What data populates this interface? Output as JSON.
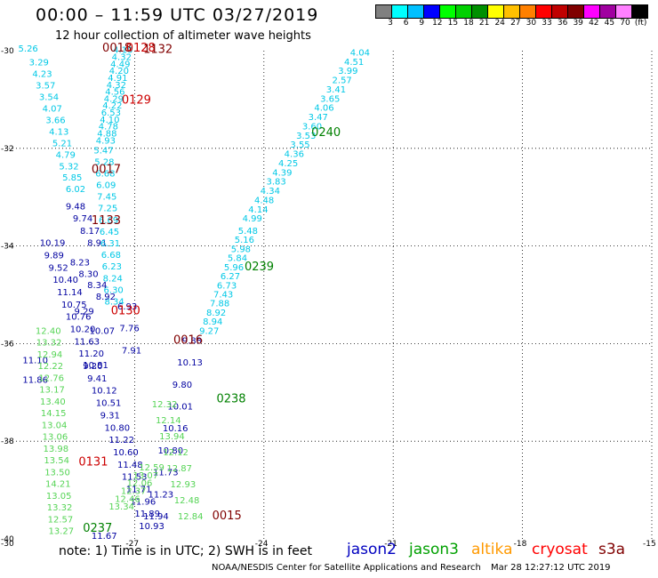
{
  "header": {
    "title": "00:00 – 11:59 UTC 03/27/2019",
    "subtitle": "12 hour collection of altimeter wave heights"
  },
  "colorbar": {
    "unit_label": "(ft)",
    "labels": [
      "3",
      "6",
      "9",
      "12",
      "15",
      "18",
      "21",
      "24",
      "27",
      "30",
      "33",
      "36",
      "39",
      "42",
      "45",
      "70"
    ],
    "colors": [
      "#808080",
      "#00ffff",
      "#00c0ff",
      "#0000ff",
      "#00ff00",
      "#00d000",
      "#009000",
      "#ffff00",
      "#ffc000",
      "#ff8000",
      "#ff0000",
      "#c00000",
      "#800000",
      "#ff00ff",
      "#a000a0",
      "#ff80ff",
      "#000000"
    ]
  },
  "map": {
    "lat_labels": [
      "-30",
      "-32",
      "-34",
      "-36",
      "-38",
      "-40"
    ],
    "lon_labels": [
      "-30",
      "-27",
      "-24",
      "-21",
      "-18",
      "-15"
    ],
    "lat_values": [
      -30,
      -32,
      -34,
      -36,
      -38,
      -40
    ],
    "lon_values": [
      -30,
      -27,
      -24,
      -21,
      -18,
      -15
    ],
    "track_colors": {
      "jason2": "#0000a0",
      "jason3": "#008000",
      "cryosat": "#cc0000",
      "s3a": "#800000",
      "cyan": "#00c8e6",
      "lightgreen": "#55d455"
    },
    "time_labels": [
      {
        "text": "0018",
        "lon": -27.75,
        "lat": -30.02,
        "color": "s3a"
      },
      {
        "text": "0128",
        "lon": -27.2,
        "lat": -30.02,
        "color": "cryosat"
      },
      {
        "text": "1132",
        "lon": -26.8,
        "lat": -30.05,
        "color": "s3a"
      },
      {
        "text": "0129",
        "lon": -27.3,
        "lat": -31.08,
        "color": "cryosat"
      },
      {
        "text": "0017",
        "lon": -28.0,
        "lat": -32.5,
        "color": "s3a"
      },
      {
        "text": "1133",
        "lon": -28.0,
        "lat": -33.55,
        "color": "s3a"
      },
      {
        "text": "0130",
        "lon": -27.55,
        "lat": -35.4,
        "color": "cryosat"
      },
      {
        "text": "0016",
        "lon": -26.1,
        "lat": -36.0,
        "color": "s3a"
      },
      {
        "text": "0131",
        "lon": -28.3,
        "lat": -38.5,
        "color": "cryosat"
      },
      {
        "text": "0015",
        "lon": -25.2,
        "lat": -39.6,
        "color": "s3a"
      },
      {
        "text": "0237",
        "lon": -28.2,
        "lat": -39.85,
        "color": "jason3"
      },
      {
        "text": "0238",
        "lon": -25.1,
        "lat": -37.2,
        "color": "jason3"
      },
      {
        "text": "0239",
        "lon": -24.45,
        "lat": -34.5,
        "color": "jason3"
      },
      {
        "text": "0240",
        "lon": -22.9,
        "lat": -31.75,
        "color": "jason3"
      }
    ],
    "tracks": [
      {
        "color": "jason2",
        "start": [
          -28.6,
          -33.25
        ],
        "end": [
          -28.1,
          -34.0
        ],
        "values": [
          "9.48",
          "9.74",
          "8.17",
          "8.91"
        ]
      },
      {
        "color": "jason2",
        "start": [
          -29.2,
          -34.0
        ],
        "end": [
          -26.9,
          -39.8
        ],
        "values": [
          "10.19",
          "9.89",
          "9.52",
          "10.40",
          "11.14",
          "10.75",
          "10.76",
          "10.20",
          "11.63",
          "11.20",
          "9.20",
          "9.41",
          "10.12",
          "10.51",
          "9.31",
          "10.80",
          "11.22",
          "10.60",
          "11.48",
          "11.53",
          "11.71",
          "11.96",
          "11.89",
          "10.93"
        ]
      },
      {
        "color": "jason2",
        "start": [
          -25.9,
          -36.0
        ],
        "end": [
          -26.8,
          -39.6
        ],
        "values": [
          "9.88",
          "10.13",
          "9.80",
          "10.01",
          "10.16",
          "10.80",
          "11.73",
          "11.23",
          "11.94"
        ]
      },
      {
        "color": "jason2",
        "start": [
          -29.6,
          -36.4
        ],
        "end": [
          -29.6,
          -36.8
        ],
        "values": [
          "11.10",
          "11.86"
        ]
      },
      {
        "color": "jason2",
        "start": [
          -28.2,
          -36.5
        ],
        "end": [
          -28.0,
          -40.0
        ],
        "values": [
          "10.81",
          "11.67"
        ]
      },
      {
        "color": "jason2",
        "start": [
          -28.4,
          -35.4
        ],
        "end": [
          -28.05,
          -35.8
        ],
        "values": [
          "9.29",
          "10.07"
        ]
      },
      {
        "color": "cyan",
        "start": [
          -29.7,
          -30.02
        ],
        "end": [
          -29.7,
          -30.15
        ],
        "values": [
          "5.26"
        ]
      },
      {
        "color": "cyan",
        "start": [
          -29.45,
          -30.3
        ],
        "end": [
          -28.6,
          -32.9
        ],
        "values": [
          "3.29",
          "4.23",
          "3.57",
          "3.54",
          "4.07",
          "3.66",
          "4.13",
          "5.21",
          "4.79",
          "5.32",
          "5.85",
          "6.02"
        ]
      },
      {
        "color": "cyan",
        "start": [
          -27.5,
          -30.05
        ],
        "end": [
          -27.9,
          -31.9
        ],
        "values": [
          "4.10",
          "4.32",
          "4.49",
          "4.20",
          "4.91",
          "4.32",
          "4.56",
          "4.29",
          "4.22",
          "6.53",
          "4.10",
          "4.78",
          "4.88",
          "4.93"
        ]
      },
      {
        "color": "cyan",
        "start": [
          -27.95,
          -32.1
        ],
        "end": [
          -27.7,
          -35.2
        ],
        "values": [
          "5.47",
          "5.28",
          "6.68",
          "6.09",
          "7.45",
          "7.25",
          "6.69",
          "6.45",
          "6.31",
          "6.68",
          "6.23",
          "8.24",
          "6.30",
          "8.34"
        ]
      },
      {
        "color": "jason2",
        "start": [
          -28.5,
          -34.4
        ],
        "end": [
          -27.9,
          -35.1
        ],
        "values": [
          "8.23",
          "8.30",
          "8.34",
          "8.92"
        ]
      },
      {
        "color": "cyan",
        "start": [
          -22.0,
          -30.1
        ],
        "end": [
          -24.5,
          -33.5
        ],
        "values": [
          "4.04",
          "4.51",
          "3.99",
          "2.57",
          "3.41",
          "3.65",
          "4.06",
          "3.47",
          "3.60",
          "3.53",
          "3.55",
          "4.36",
          "4.25",
          "4.39",
          "3.83",
          "4.34",
          "4.48",
          "4.14",
          "4.99"
        ]
      },
      {
        "color": "cyan",
        "start": [
          -24.6,
          -33.75
        ],
        "end": [
          -25.5,
          -35.8
        ],
        "values": [
          "5.48",
          "5.16",
          "5.98",
          "5.84",
          "5.96",
          "6.27",
          "6.73",
          "7.43",
          "7.88",
          "8.92",
          "8.94",
          "9.27"
        ]
      },
      {
        "color": "jason2",
        "start": [
          -27.4,
          -35.3
        ],
        "end": [
          -27.3,
          -36.2
        ],
        "values": [
          "6.93",
          "7.76",
          "7.91"
        ]
      },
      {
        "color": "lightgreen",
        "start": [
          -29.3,
          -35.8
        ],
        "end": [
          -29.0,
          -39.9
        ],
        "values": [
          "12.40",
          "13.32",
          "12.94",
          "12.22",
          "12.76",
          "13.17",
          "13.40",
          "14.15",
          "13.04",
          "13.06",
          "13.98",
          "13.54",
          "13.50",
          "14.21",
          "13.05",
          "13.32",
          "12.57",
          "13.27"
        ]
      },
      {
        "color": "lightgreen",
        "start": [
          -26.6,
          -37.3
        ],
        "end": [
          -26.0,
          -39.6
        ],
        "values": [
          "12.32",
          "12.14",
          "13.94",
          "12.12",
          "12.87",
          "12.93",
          "12.48",
          "12.84"
        ]
      },
      {
        "color": "lightgreen",
        "start": [
          -26.9,
          -38.6
        ],
        "end": [
          -27.6,
          -39.4
        ],
        "values": [
          "12.59",
          "13.07",
          "12.06",
          "12.37",
          "12.46",
          "13.34"
        ]
      }
    ]
  },
  "footer": {
    "note": "note:  1) Time is in UTC;  2) SWH is in feet",
    "credit": "NOAA/NESDIS Center for Satellite Applications and Research",
    "timestamp": "Mar 28 12:27:12 UTC 2019",
    "satellites": [
      {
        "name": "jason2",
        "color": "#0000c0"
      },
      {
        "name": "jason3",
        "color": "#00a000"
      },
      {
        "name": "altika",
        "color": "#ff9900"
      },
      {
        "name": "cryosat",
        "color": "#ff0000"
      },
      {
        "name": "s3a",
        "color": "#800000"
      }
    ]
  }
}
